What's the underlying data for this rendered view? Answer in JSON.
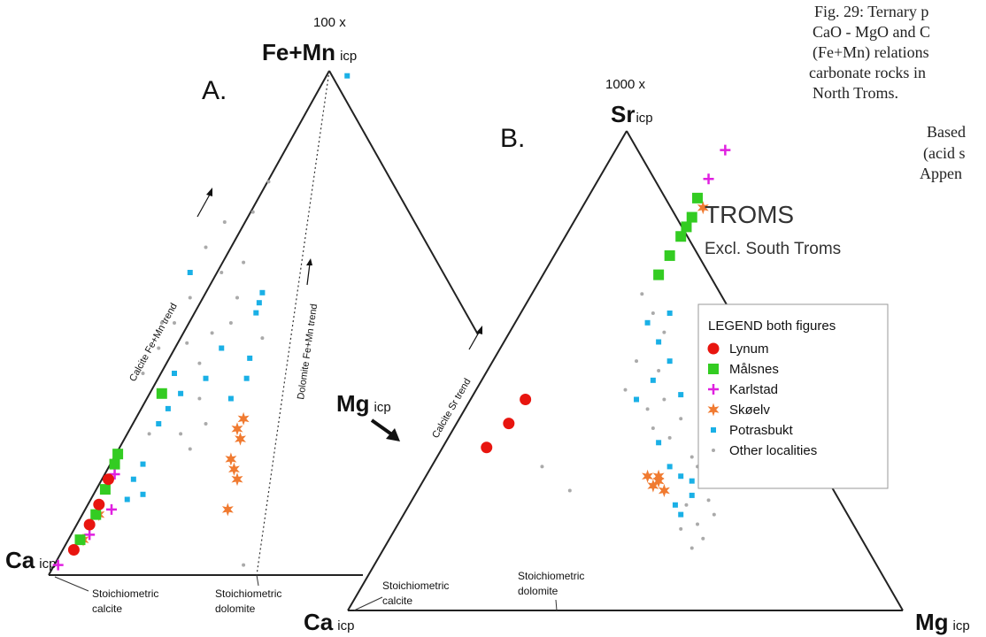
{
  "caption": {
    "lines": [
      "Fig. 29: Ternary p",
      "CaO - MgO and  C",
      "(Fe+Mn) relations",
      "carbonate rocks in",
      "North Troms."
    ],
    "note_lines": [
      "Based",
      "(acid s",
      "Appen"
    ]
  },
  "region": {
    "title": "TROMS",
    "subtitle": "Excl. South Troms"
  },
  "legend": {
    "title": "LEGEND both figures",
    "items": [
      {
        "label": "Lynum",
        "color": "#e8150f",
        "marker": "circle"
      },
      {
        "label": "Målsnes",
        "color": "#33cc22",
        "marker": "square"
      },
      {
        "label": "Karlstad",
        "color": "#e020e0",
        "marker": "plus"
      },
      {
        "label": "Skøelv",
        "color": "#f07a30",
        "marker": "star"
      },
      {
        "label": "Potrasbukt",
        "color": "#1ab0e6",
        "marker": "small-square"
      },
      {
        "label": "Other localities",
        "color": "#aaaaaa",
        "marker": "dot"
      }
    ]
  },
  "chart_data": [
    {
      "type": "scatter",
      "subtype": "ternary",
      "panel_label": "A.",
      "corners": {
        "top": "Fe+Mn",
        "top_subscript": "icp",
        "top_multiplier": "100 x",
        "left": "Ca",
        "left_subscript": "icp"
      },
      "trend_labels": [
        "Calcite Fe+Mn trend",
        "Dolomite Fe+Mn trend"
      ],
      "reference_labels": [
        {
          "line1": "Stoichiometric",
          "line2": "calcite"
        },
        {
          "line1": "Stoichiometric",
          "line2": "dolomite"
        }
      ],
      "points_note": "positions in normalized panel coords (u = along base from Ca, v = toward Fe+Mn apex)",
      "series": [
        {
          "name": "Lynum",
          "points": [
            [
              0.08,
              0.05
            ],
            [
              0.13,
              0.1
            ],
            [
              0.16,
              0.14
            ],
            [
              0.19,
              0.19
            ]
          ]
        },
        {
          "name": "Målsnes",
          "points": [
            [
              0.1,
              0.07
            ],
            [
              0.15,
              0.12
            ],
            [
              0.18,
              0.17
            ],
            [
              0.21,
              0.22
            ],
            [
              0.22,
              0.24
            ],
            [
              0.36,
              0.36
            ]
          ]
        },
        {
          "name": "Karlstad",
          "points": [
            [
              0.03,
              0.02
            ],
            [
              0.13,
              0.08
            ],
            [
              0.21,
              0.2
            ],
            [
              0.2,
              0.13
            ]
          ]
        },
        {
          "name": "Skøelv",
          "points": [
            [
              0.11,
              0.07
            ],
            [
              0.16,
              0.12
            ],
            [
              0.6,
              0.29
            ],
            [
              0.58,
              0.23
            ],
            [
              0.59,
              0.21
            ],
            [
              0.6,
              0.19
            ],
            [
              0.57,
              0.13
            ],
            [
              0.62,
              0.31
            ],
            [
              0.61,
              0.27
            ]
          ]
        },
        {
          "name": "Potrasbukt",
          "points": [
            [
              0.95,
              0.99
            ],
            [
              0.66,
              0.52
            ],
            [
              0.67,
              0.54
            ],
            [
              0.68,
              0.56
            ],
            [
              0.64,
              0.43
            ],
            [
              0.63,
              0.39
            ],
            [
              0.45,
              0.6
            ],
            [
              0.4,
              0.4
            ],
            [
              0.35,
              0.3
            ],
            [
              0.42,
              0.36
            ],
            [
              0.3,
              0.22
            ],
            [
              0.25,
              0.15
            ],
            [
              0.3,
              0.16
            ],
            [
              0.5,
              0.39
            ],
            [
              0.58,
              0.35
            ],
            [
              0.55,
              0.45
            ],
            [
              0.38,
              0.33
            ],
            [
              0.27,
              0.19
            ]
          ]
        },
        {
          "name": "Other localities",
          "points": [
            [
              0.7,
              0.78
            ],
            [
              0.65,
              0.72
            ],
            [
              0.5,
              0.65
            ],
            [
              0.55,
              0.6
            ],
            [
              0.45,
              0.55
            ],
            [
              0.4,
              0.5
            ],
            [
              0.6,
              0.55
            ],
            [
              0.48,
              0.42
            ],
            [
              0.35,
              0.45
            ],
            [
              0.3,
              0.4
            ],
            [
              0.5,
              0.3
            ],
            [
              0.45,
              0.25
            ],
            [
              0.62,
              0.02
            ],
            [
              0.58,
              0.5
            ],
            [
              0.52,
              0.48
            ],
            [
              0.42,
              0.28
            ],
            [
              0.32,
              0.28
            ],
            [
              0.36,
              0.5
            ],
            [
              0.62,
              0.62
            ],
            [
              0.56,
              0.7
            ],
            [
              0.68,
              0.47
            ],
            [
              0.44,
              0.46
            ],
            [
              0.48,
              0.35
            ]
          ]
        }
      ]
    },
    {
      "type": "scatter",
      "subtype": "ternary",
      "panel_label": "B.",
      "corners": {
        "top": "Sr",
        "top_subscript": "icp",
        "top_multiplier": "1000 x",
        "left": "Ca",
        "left_subscript": "icp",
        "right": "Mg",
        "right_subscript": "icp"
      },
      "trend_labels": [
        "Calcite Sr trend"
      ],
      "reference_labels": [
        {
          "line1": "Stoichiometric",
          "line2": "calcite"
        },
        {
          "line1": "Stoichiometric",
          "line2": "dolomite"
        }
      ],
      "series": [
        {
          "name": "Lynum",
          "points": [
            [
              0.25,
              0.34
            ],
            [
              0.29,
              0.39
            ],
            [
              0.32,
              0.44
            ]
          ]
        },
        {
          "name": "Målsnes",
          "points": [
            [
              0.63,
              0.86
            ],
            [
              0.62,
              0.82
            ],
            [
              0.61,
              0.8
            ],
            [
              0.6,
              0.78
            ],
            [
              0.58,
              0.74
            ],
            [
              0.56,
              0.7
            ]
          ]
        },
        {
          "name": "Karlstad",
          "points": [
            [
              0.68,
              0.96
            ],
            [
              0.65,
              0.9
            ]
          ]
        },
        {
          "name": "Skøelv",
          "points": [
            [
              0.64,
              0.84
            ],
            [
              0.54,
              0.28
            ],
            [
              0.56,
              0.27
            ],
            [
              0.55,
              0.26
            ],
            [
              0.57,
              0.25
            ],
            [
              0.56,
              0.28
            ]
          ]
        },
        {
          "name": "Potrasbukt",
          "points": [
            [
              0.54,
              0.6
            ],
            [
              0.56,
              0.56
            ],
            [
              0.58,
              0.52
            ],
            [
              0.55,
              0.48
            ],
            [
              0.52,
              0.44
            ],
            [
              0.6,
              0.45
            ],
            [
              0.56,
              0.35
            ],
            [
              0.58,
              0.3
            ],
            [
              0.6,
              0.28
            ],
            [
              0.62,
              0.24
            ],
            [
              0.59,
              0.22
            ],
            [
              0.6,
              0.2
            ],
            [
              0.62,
              0.27
            ],
            [
              0.58,
              0.62
            ]
          ]
        },
        {
          "name": "Other localities",
          "points": [
            [
              0.53,
              0.66
            ],
            [
              0.55,
              0.62
            ],
            [
              0.57,
              0.58
            ],
            [
              0.56,
              0.5
            ],
            [
              0.52,
              0.52
            ],
            [
              0.5,
              0.46
            ],
            [
              0.54,
              0.42
            ],
            [
              0.6,
              0.4
            ],
            [
              0.58,
              0.36
            ],
            [
              0.62,
              0.32
            ],
            [
              0.61,
              0.22
            ],
            [
              0.63,
              0.18
            ],
            [
              0.6,
              0.17
            ],
            [
              0.64,
              0.15
            ],
            [
              0.62,
              0.13
            ],
            [
              0.66,
              0.2
            ],
            [
              0.65,
              0.23
            ],
            [
              0.35,
              0.3
            ],
            [
              0.4,
              0.25
            ],
            [
              0.57,
              0.44
            ],
            [
              0.55,
              0.38
            ],
            [
              0.63,
              0.3
            ]
          ]
        }
      ]
    }
  ]
}
